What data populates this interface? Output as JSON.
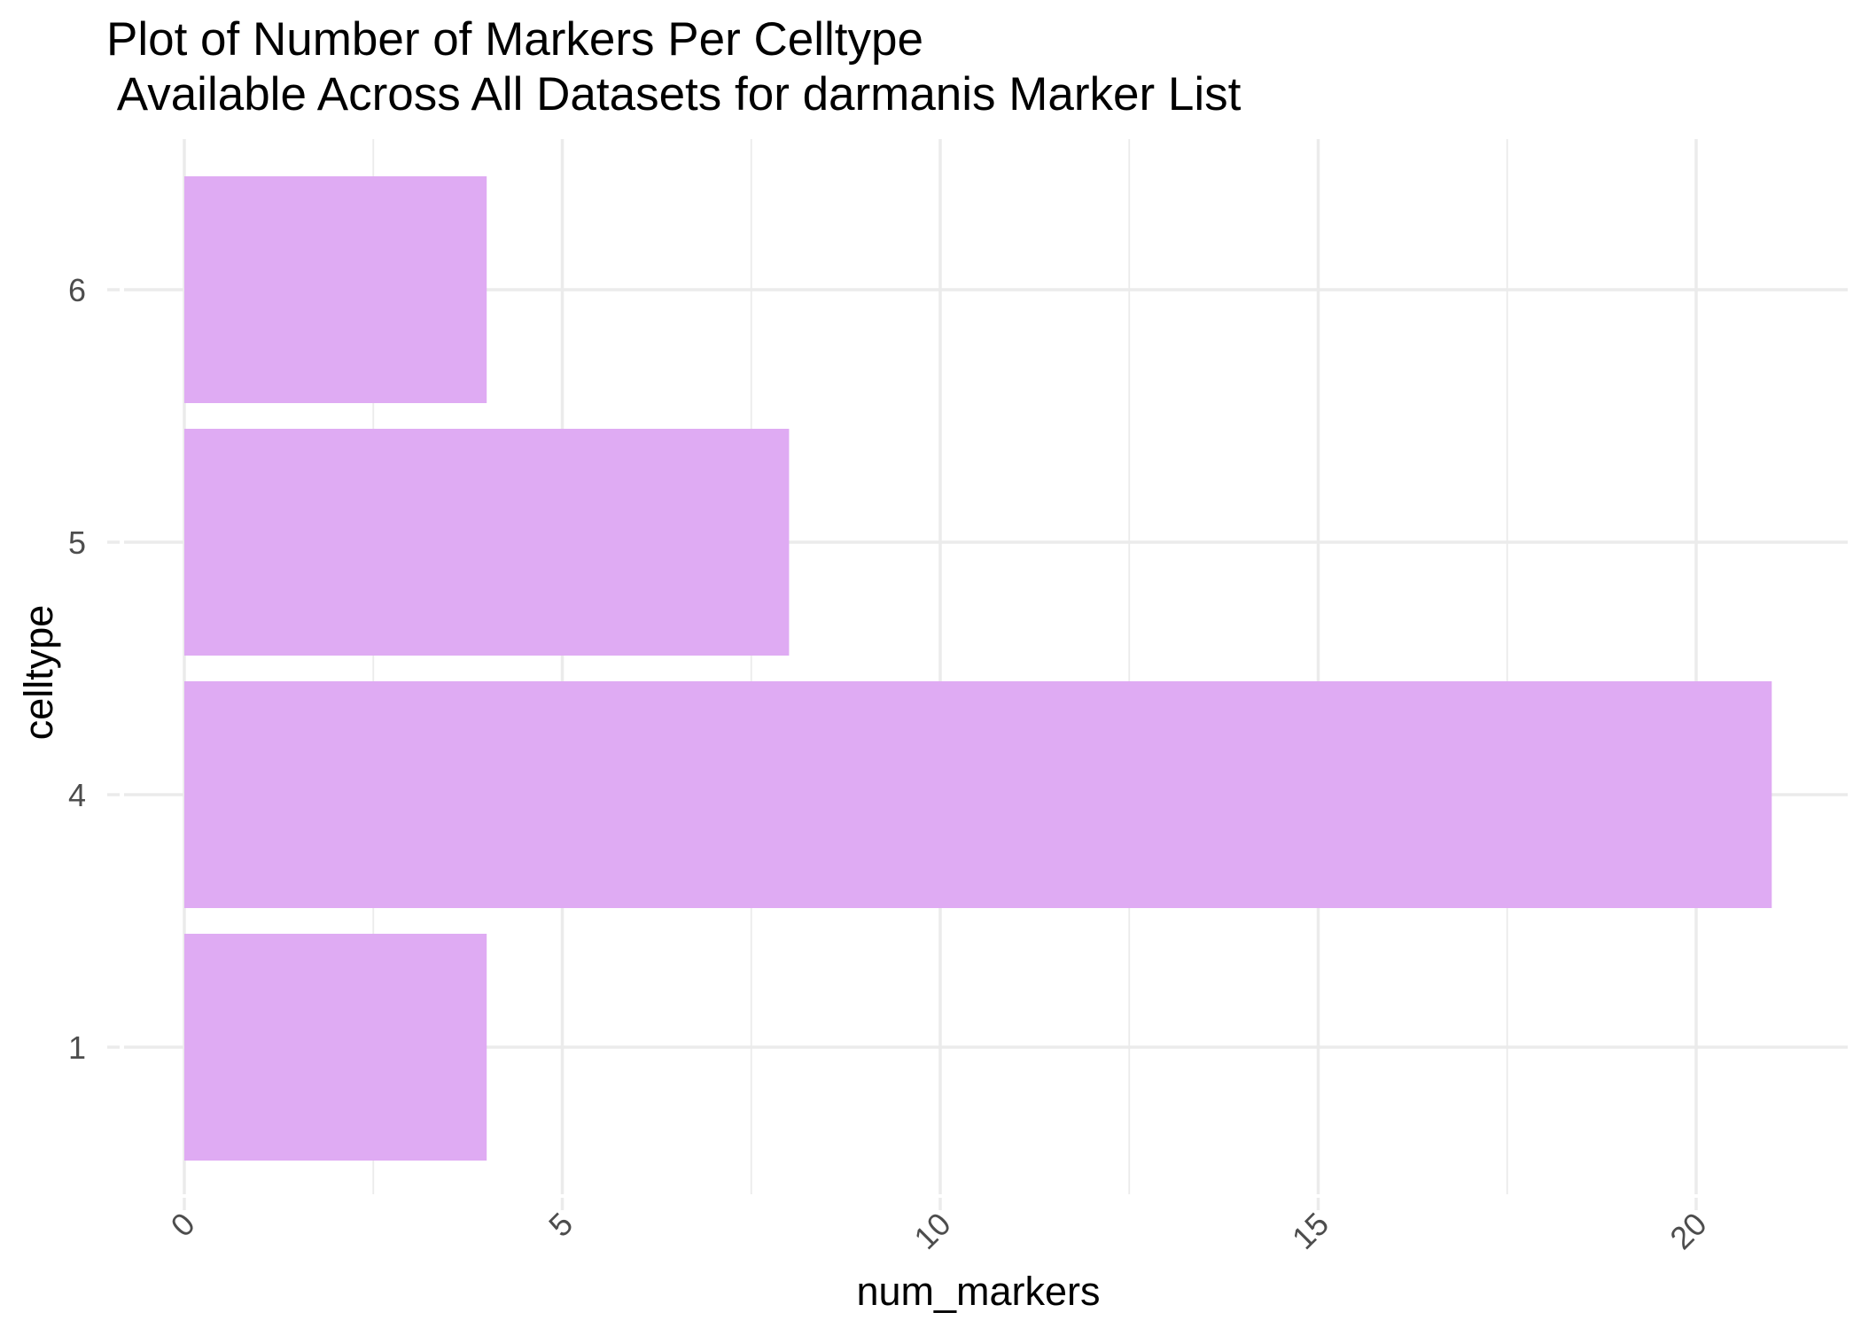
{
  "chart_data": {
    "type": "bar",
    "orientation": "horizontal",
    "title_line1": "Plot of Number of Markers Per Celltype",
    "title_line2": " Available Across All Datasets for darmanis Marker List",
    "xlabel": "num_markers",
    "ylabel": "celltype",
    "categories": [
      "1",
      "4",
      "5",
      "6"
    ],
    "values": [
      4,
      21,
      8,
      4
    ],
    "xlim": [
      0,
      22.05
    ],
    "x_ticks": [
      0,
      5,
      10,
      15,
      20
    ],
    "x_tick_labels": [
      "0",
      "5",
      "10",
      "15",
      "20"
    ],
    "x_tick_rotation_deg": -45,
    "grid": true,
    "legend": "none",
    "bar_color": "#dfabf3",
    "grid_color": "#ebebeb"
  }
}
